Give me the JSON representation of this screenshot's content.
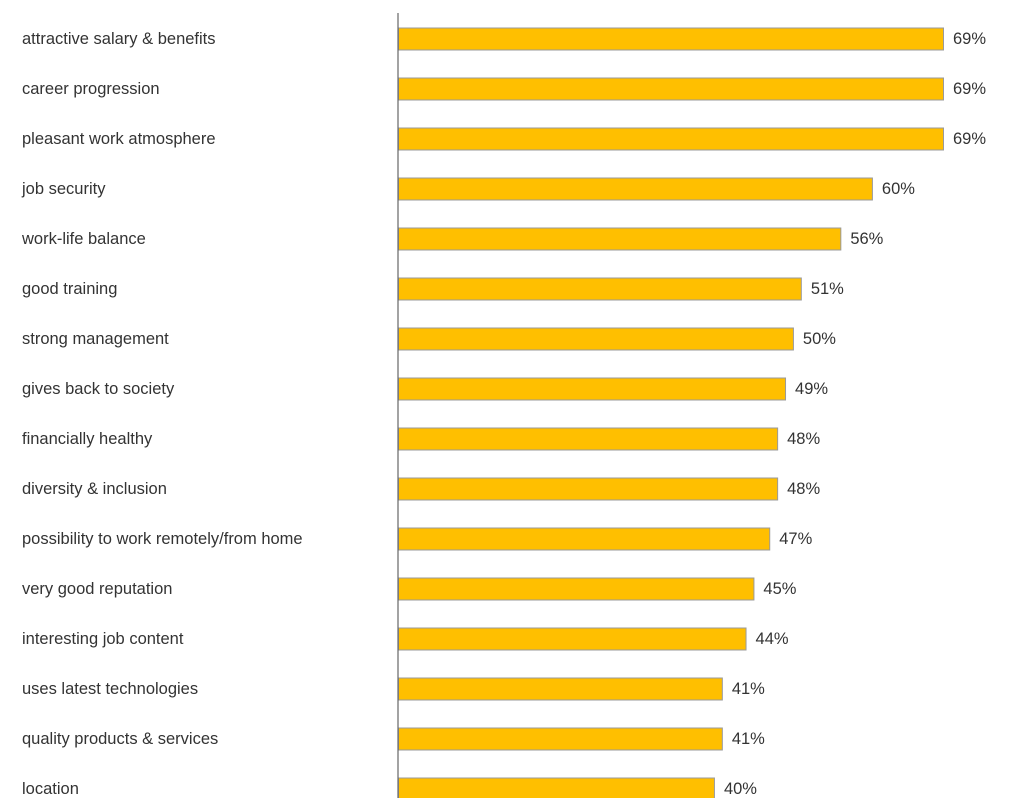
{
  "chart_data": {
    "type": "bar",
    "orientation": "horizontal",
    "title": "",
    "xlabel": "",
    "ylabel": "",
    "grid": false,
    "legend": "none",
    "value_suffix": "%",
    "xlim": [
      0,
      69
    ],
    "bar_color": "#FFBF00",
    "bar_stroke_color": "#9A9A9A",
    "axis_color": "#666666",
    "label_color": "#333333",
    "categories": [
      "attractive salary & benefits",
      "career progression",
      "pleasant work atmosphere",
      "job security",
      "work-life balance",
      "good training",
      "strong management",
      "gives back to society",
      "financially healthy",
      "diversity & inclusion",
      "possibility to work remotely/from home",
      "very good reputation",
      "interesting job content",
      "uses latest technologies",
      "quality products & services",
      "location"
    ],
    "values": [
      69,
      69,
      69,
      60,
      56,
      51,
      50,
      49,
      48,
      48,
      47,
      45,
      44,
      41,
      41,
      40
    ],
    "data_labels": [
      "69%",
      "69%",
      "69%",
      "60%",
      "56%",
      "51%",
      "50%",
      "49%",
      "48%",
      "48%",
      "47%",
      "45%",
      "44%",
      "41%",
      "41%",
      "40%"
    ]
  }
}
